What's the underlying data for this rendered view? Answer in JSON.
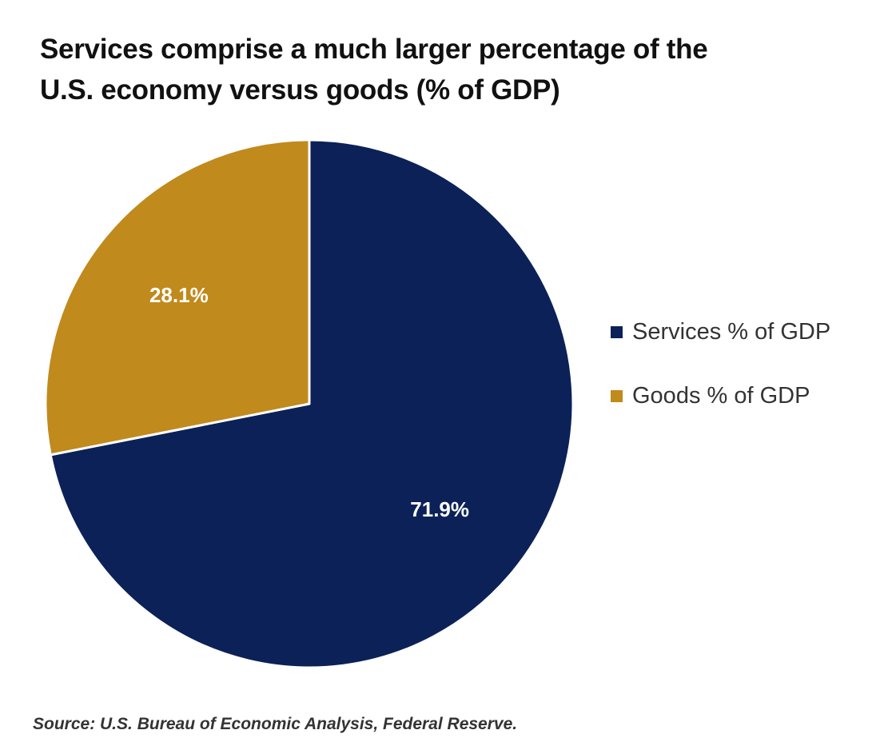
{
  "chart_data": {
    "type": "pie",
    "title": "Services comprise a much larger percentage of the U.S. economy versus goods (% of GDP)",
    "slices": [
      {
        "label": "Services % of GDP",
        "value": 71.9,
        "display": "71.9%",
        "color": "#0B2158"
      },
      {
        "label": "Goods % of GDP",
        "value": 28.1,
        "display": "28.1%",
        "color": "#C08A1C"
      }
    ],
    "start_angle_deg": 0,
    "direction": "clockwise",
    "legend_position": "right"
  },
  "source": "Source: U.S. Bureau of Economic Analysis, Federal Reserve."
}
